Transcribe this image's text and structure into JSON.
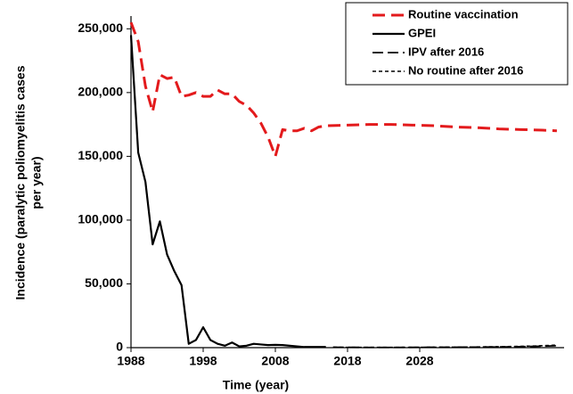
{
  "chart_data": {
    "type": "line",
    "xlabel": "Time (year)",
    "ylabel": [
      "Incidence (paralytic poliomyelitis cases",
      "per year)"
    ],
    "xlim": [
      1988,
      2048
    ],
    "xticks": [
      1988,
      1998,
      2008,
      2018,
      2028
    ],
    "ylim": [
      0,
      260000
    ],
    "yticks": [
      0,
      {
        "value": 50000,
        "label": "50,000"
      },
      {
        "value": 100000,
        "label": "100,000"
      },
      {
        "value": 150000,
        "label": "150,000"
      },
      {
        "value": 200000,
        "label": "200,000"
      },
      {
        "value": 250000,
        "label": "250,000"
      }
    ],
    "legend": "top-right",
    "series": [
      {
        "name": "Routine vaccination",
        "color": "#e31a1c",
        "style": "dashed",
        "x": [
          1988,
          1989,
          1990,
          1991,
          1992,
          1993,
          1994,
          1995,
          1996,
          1997,
          1998,
          1999,
          2000,
          2001,
          2002,
          2003,
          2004,
          2005,
          2006,
          2007,
          2008,
          2009,
          2010,
          2011,
          2012,
          2013,
          2014,
          2015,
          2018,
          2021,
          2024,
          2027,
          2030,
          2033,
          2036,
          2039,
          2042,
          2045,
          2047
        ],
        "values": [
          255000,
          240000,
          205000,
          185000,
          214000,
          211000,
          212000,
          197000,
          198000,
          200000,
          197000,
          197000,
          202000,
          199000,
          199000,
          193000,
          190000,
          184000,
          176000,
          165000,
          150000,
          171000,
          170000,
          170000,
          172000,
          170000,
          173000,
          174000,
          174500,
          175000,
          175000,
          174500,
          174000,
          173000,
          172500,
          171500,
          171000,
          170500,
          170000
        ]
      },
      {
        "name": "GPEI",
        "color": "#000000",
        "style": "solid",
        "x": [
          1988,
          1989,
          1990,
          1991,
          1992,
          1993,
          1994,
          1995,
          1996,
          1997,
          1998,
          1999,
          2000,
          2001,
          2002,
          2003,
          2004,
          2005,
          2006,
          2007,
          2008,
          2009,
          2010,
          2011,
          2012,
          2013,
          2014,
          2015
        ],
        "values": [
          245000,
          153000,
          130000,
          81000,
          99000,
          73000,
          60000,
          49000,
          3000,
          6000,
          16000,
          6000,
          3000,
          1500,
          4000,
          1000,
          1500,
          3000,
          2500,
          2000,
          2200,
          2000,
          1500,
          1000,
          500,
          500,
          500,
          500
        ]
      },
      {
        "name": "IPV after 2016",
        "color": "#000000",
        "style": "longdash",
        "x": [
          2016,
          2020,
          2025,
          2030,
          2035,
          2040,
          2044,
          2047
        ],
        "values": [
          300,
          200,
          200,
          300,
          400,
          600,
          1000,
          1500
        ]
      },
      {
        "name": "No routine after 2016",
        "color": "#000000",
        "style": "shortdash",
        "x": [
          2016,
          2020,
          2025,
          2030,
          2035,
          2040,
          2044,
          2047
        ],
        "values": [
          300,
          200,
          200,
          300,
          500,
          800,
          1300,
          2000
        ]
      }
    ]
  }
}
